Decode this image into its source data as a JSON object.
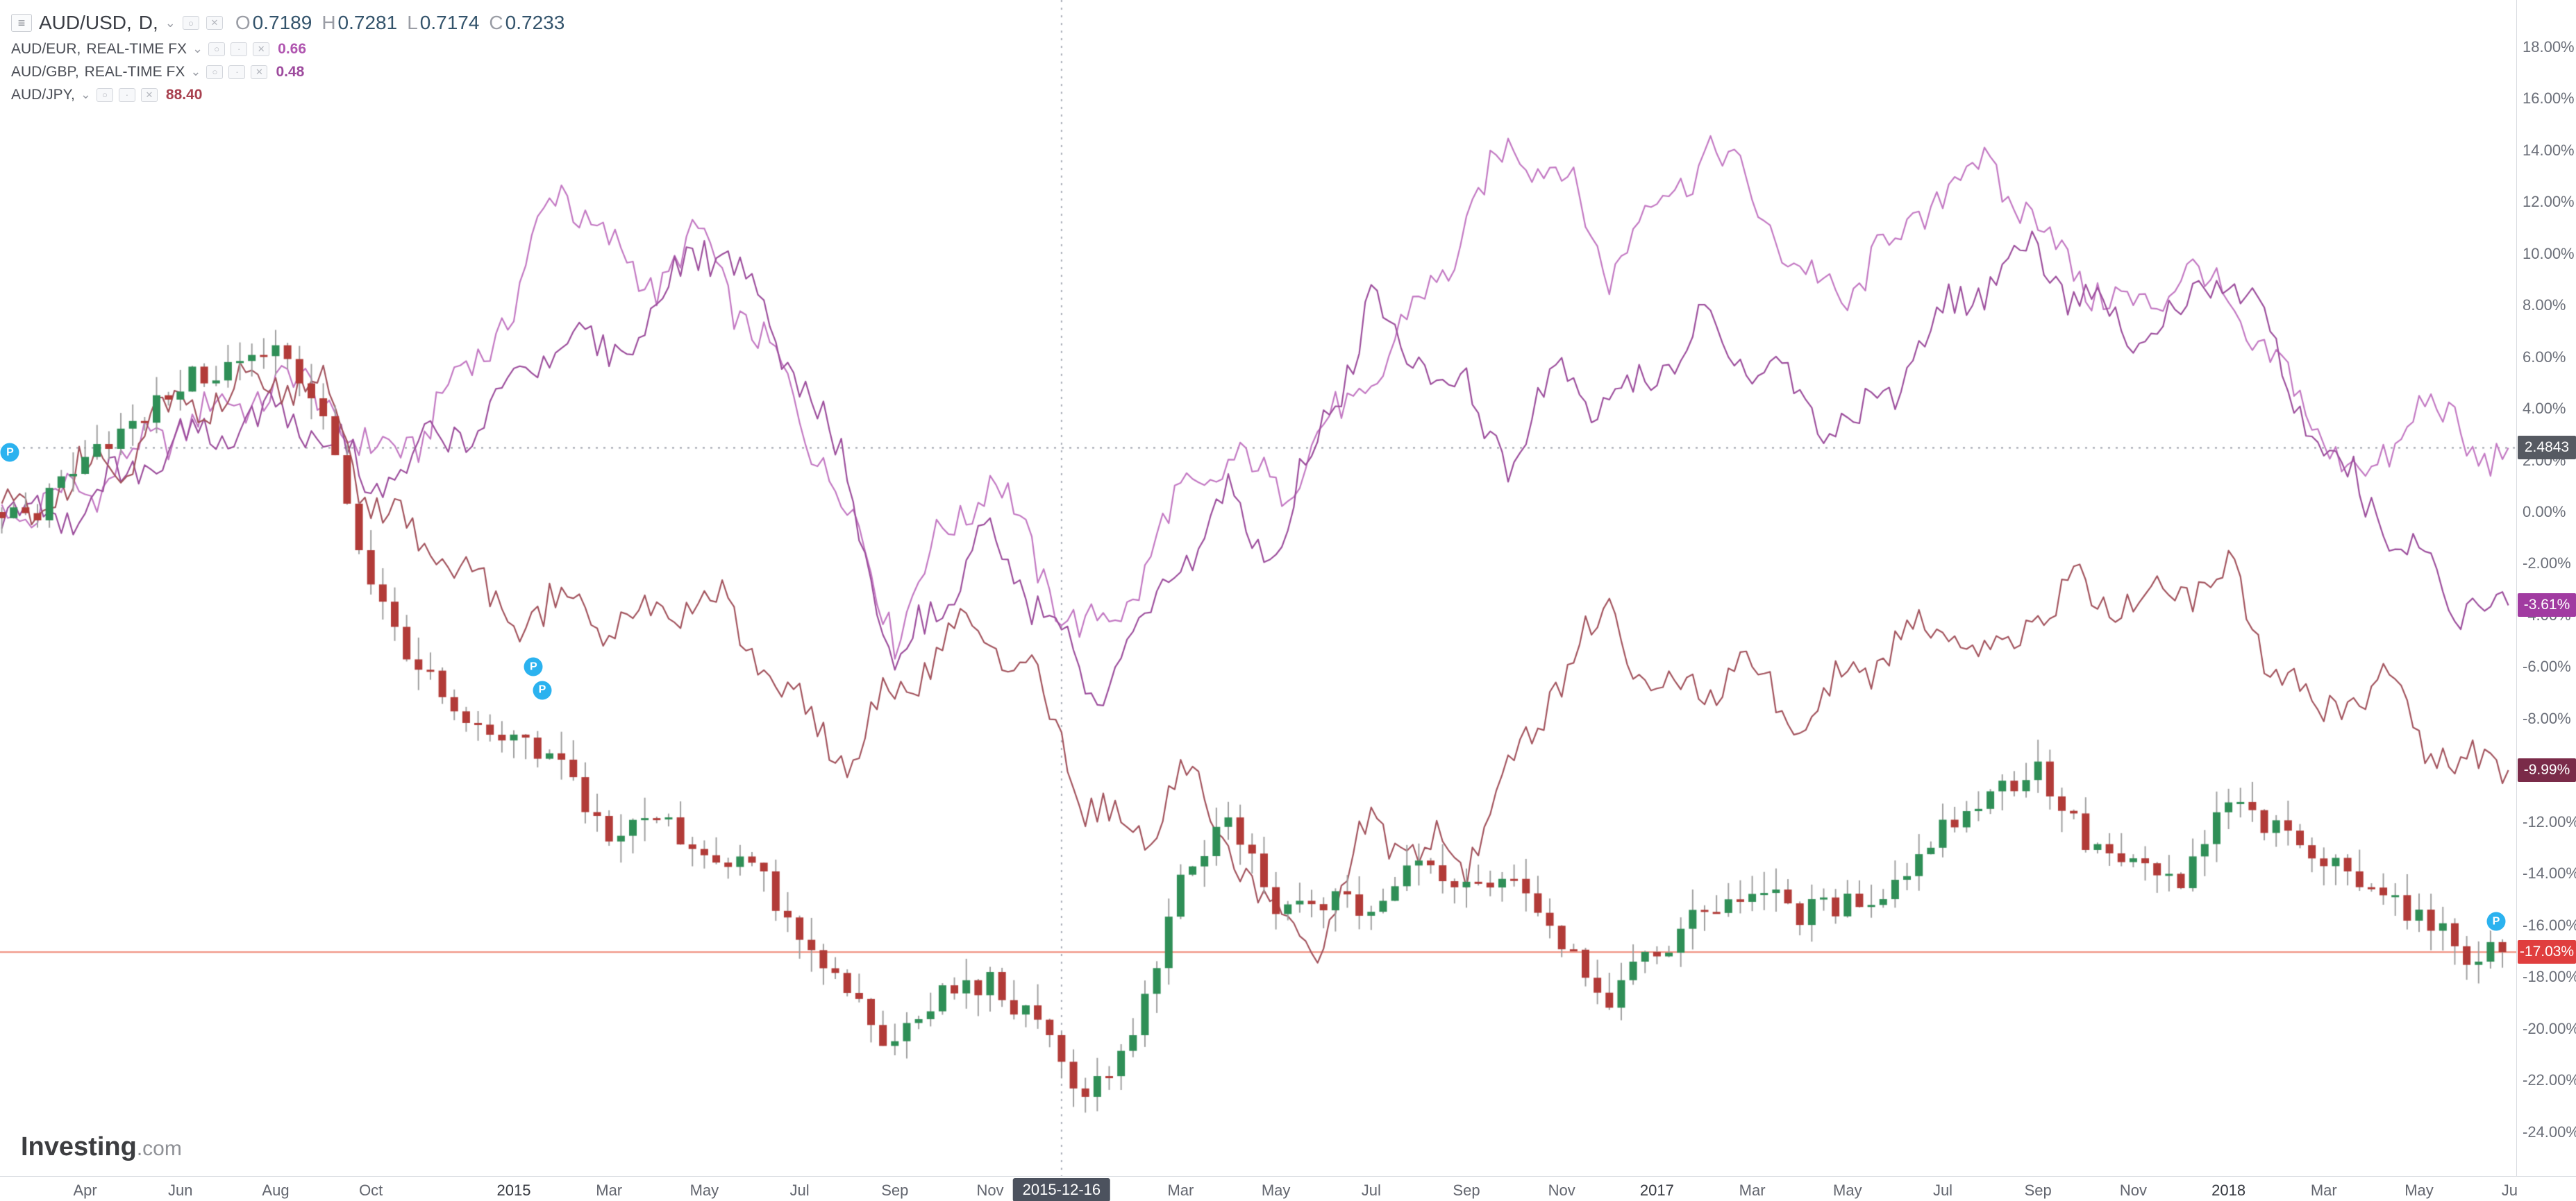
{
  "app": {
    "watermark_main": "Investing",
    "watermark_suffix": ".com"
  },
  "legend": {
    "main": {
      "symbol": "AUD/USD,",
      "interval": "D,",
      "ohlc_labels": {
        "o": "O",
        "h": "H",
        "l": "L",
        "c": "C"
      },
      "ohlc": {
        "o": "0.7189",
        "h": "0.7281",
        "l": "0.7174",
        "c": "0.7233"
      },
      "value_color": "#33536b"
    },
    "compares": [
      {
        "symbol": "AUD/EUR,",
        "type": "REAL-TIME FX",
        "value": "0.66",
        "color": "#b055b0"
      },
      {
        "symbol": "AUD/GBP,",
        "type": "REAL-TIME FX",
        "value": "0.48",
        "color": "#9d4a9d"
      },
      {
        "symbol": "AUD/JPY,",
        "type": "",
        "value": "88.40",
        "color": "#a8414f"
      }
    ]
  },
  "axes": {
    "y_ticks": [
      {
        "label": "18.00%",
        "value": 18
      },
      {
        "label": "16.00%",
        "value": 16
      },
      {
        "label": "14.00%",
        "value": 14
      },
      {
        "label": "12.00%",
        "value": 12
      },
      {
        "label": "10.00%",
        "value": 10
      },
      {
        "label": "8.00%",
        "value": 8
      },
      {
        "label": "6.00%",
        "value": 6
      },
      {
        "label": "4.00%",
        "value": 4
      },
      {
        "label": "2.00%",
        "value": 2
      },
      {
        "label": "0.00%",
        "value": 0
      },
      {
        "label": "-2.00%",
        "value": -2
      },
      {
        "label": "-4.00%",
        "value": -4
      },
      {
        "label": "-6.00%",
        "value": -6
      },
      {
        "label": "-8.00%",
        "value": -8
      },
      {
        "label": "-10.00%",
        "value": -10
      },
      {
        "label": "-12.00%",
        "value": -12
      },
      {
        "label": "-14.00%",
        "value": -14
      },
      {
        "label": "-16.00%",
        "value": -16
      },
      {
        "label": "-18.00%",
        "value": -18
      },
      {
        "label": "-20.00%",
        "value": -20
      },
      {
        "label": "-22.00%",
        "value": -22
      },
      {
        "label": "-24.00%",
        "value": -24
      }
    ],
    "x_labels": [
      {
        "label": "Apr",
        "m": 1
      },
      {
        "label": "Jun",
        "m": 3
      },
      {
        "label": "Aug",
        "m": 5
      },
      {
        "label": "Oct",
        "m": 7
      },
      {
        "label": "2015",
        "m": 10,
        "year": true
      },
      {
        "label": "Mar",
        "m": 12
      },
      {
        "label": "May",
        "m": 14
      },
      {
        "label": "Jul",
        "m": 16
      },
      {
        "label": "Sep",
        "m": 18
      },
      {
        "label": "Nov",
        "m": 20
      },
      {
        "label": "Mar",
        "m": 24
      },
      {
        "label": "May",
        "m": 26
      },
      {
        "label": "Jul",
        "m": 28
      },
      {
        "label": "Sep",
        "m": 30
      },
      {
        "label": "Nov",
        "m": 32
      },
      {
        "label": "2017",
        "m": 34,
        "year": true
      },
      {
        "label": "Mar",
        "m": 36
      },
      {
        "label": "May",
        "m": 38
      },
      {
        "label": "Jul",
        "m": 40
      },
      {
        "label": "Sep",
        "m": 42
      },
      {
        "label": "Nov",
        "m": 44
      },
      {
        "label": "2018",
        "m": 46,
        "year": true
      },
      {
        "label": "Mar",
        "m": 48
      },
      {
        "label": "May",
        "m": 50
      },
      {
        "label": "Ju",
        "m": 51.9
      }
    ],
    "crosshair_date": {
      "label": "2015-12-16",
      "m": 21.5
    },
    "price_tags": [
      {
        "label": "2.4843",
        "pct": 2.4843,
        "bg": "#565a62"
      },
      {
        "label": "-3.61%",
        "pct": -3.61,
        "bg": "#a13ba1"
      },
      {
        "label": "-9.99%",
        "pct": -9.99,
        "bg": "#7a2b49"
      },
      {
        "label": "-17.03%",
        "pct": -17.03,
        "bg": "#e03e3e"
      }
    ]
  },
  "reference_lines": {
    "dashed_horizontal_pct": 2.4843,
    "solid_horizontal": {
      "pct": -17.03,
      "color": "rgba(235,110,90,0.85)"
    },
    "dashed_vertical_month": 21.5
  },
  "markers": [
    {
      "label": "P",
      "fx": 0.004,
      "pct": 2.3
    },
    {
      "label": "P",
      "fx": 0.212,
      "pct": -6.0
    },
    {
      "label": "P",
      "fx": 0.2155,
      "pct": -6.9
    },
    {
      "label": "P",
      "fx": 0.992,
      "pct": -15.85
    }
  ],
  "chart_data": {
    "type": "mixed",
    "note": "Percent-change comparison chart; values are % change since start (approx. monthly closes read from chart).",
    "x_unit": "month",
    "ylim": [
      -24,
      18
    ],
    "grid": false,
    "legend_position": "top-left",
    "categories": [
      "2014-03",
      "2014-04",
      "2014-05",
      "2014-06",
      "2014-07",
      "2014-08",
      "2014-09",
      "2014-10",
      "2014-11",
      "2014-12",
      "2015-01",
      "2015-02",
      "2015-03",
      "2015-04",
      "2015-05",
      "2015-06",
      "2015-07",
      "2015-08",
      "2015-09",
      "2015-10",
      "2015-11",
      "2015-12",
      "2016-01",
      "2016-02",
      "2016-03",
      "2016-04",
      "2016-05",
      "2016-06",
      "2016-07",
      "2016-08",
      "2016-09",
      "2016-10",
      "2016-11",
      "2016-12",
      "2017-01",
      "2017-02",
      "2017-03",
      "2017-04",
      "2017-05",
      "2017-06",
      "2017-07",
      "2017-08",
      "2017-09",
      "2017-10",
      "2017-11",
      "2017-12",
      "2018-01",
      "2018-02",
      "2018-03",
      "2018-04",
      "2018-05",
      "2018-06"
    ],
    "series": [
      {
        "name": "AUD/USD",
        "type": "candlestick",
        "up_color": "#2f8f57",
        "down_color": "#b23b38",
        "wick_color": "#9f9f9f",
        "last_label": "-17.03%",
        "values": [
          0,
          2.5,
          3.2,
          5.0,
          5.6,
          6.2,
          4.0,
          -3.0,
          -6.0,
          -8.5,
          -9.0,
          -9.8,
          -12.6,
          -11.8,
          -13.2,
          -13.6,
          -16.7,
          -18.5,
          -20.8,
          -18.6,
          -18.2,
          -20.0,
          -22.5,
          -20.5,
          -14.5,
          -11.8,
          -15.6,
          -15.0,
          -15.4,
          -13.6,
          -14.4,
          -14.0,
          -16.5,
          -18.8,
          -17.0,
          -15.4,
          -14.6,
          -15.5,
          -15.2,
          -14.4,
          -12.2,
          -10.8,
          -10.0,
          -12.8,
          -13.8,
          -14.4,
          -11.2,
          -12.4,
          -13.6,
          -14.2,
          -15.8,
          -17.03
        ]
      },
      {
        "name": "AUD/EUR",
        "type": "line",
        "color": "#c379c3",
        "last_label": "2.4843",
        "values": [
          0,
          1.0,
          2.0,
          3.5,
          4.0,
          5.0,
          4.5,
          2.0,
          3.0,
          5.5,
          8.0,
          13.0,
          10.0,
          9.0,
          10.5,
          7.0,
          4.0,
          0.0,
          -4.5,
          -1.0,
          1.5,
          -2.0,
          -5.0,
          -3.0,
          0.5,
          2.0,
          1.0,
          3.0,
          5.0,
          8.0,
          11.0,
          14.5,
          13.0,
          9.5,
          12.0,
          14.0,
          12.5,
          9.0,
          8.5,
          10.5,
          12.5,
          13.5,
          11.0,
          9.0,
          7.5,
          9.5,
          8.0,
          5.5,
          3.0,
          1.0,
          4.5,
          2.4843
        ]
      },
      {
        "name": "AUD/GBP",
        "type": "line",
        "color": "#9d4f9d",
        "last_label": "-3.61%",
        "values": [
          0,
          0.5,
          1.5,
          2.5,
          3.0,
          4.0,
          3.0,
          1.0,
          2.0,
          3.5,
          5.0,
          7.0,
          6.0,
          8.0,
          10.5,
          8.5,
          5.0,
          1.5,
          -6.0,
          -3.0,
          -1.0,
          -3.5,
          -7.0,
          -5.5,
          -2.0,
          0.5,
          -1.5,
          3.5,
          8.0,
          6.0,
          4.5,
          2.0,
          5.5,
          4.0,
          5.5,
          7.0,
          6.0,
          4.5,
          3.0,
          5.0,
          7.5,
          9.0,
          10.0,
          8.0,
          6.5,
          7.5,
          9.5,
          6.0,
          2.5,
          0.5,
          -2.0,
          -3.61
        ]
      },
      {
        "name": "AUD/JPY",
        "type": "line",
        "color": "#a3545e",
        "last_label": "-9.99%",
        "values": [
          0,
          1.5,
          2.5,
          4.0,
          4.5,
          5.5,
          4.5,
          0.5,
          -1.0,
          -2.5,
          -4.5,
          -3.5,
          -4.5,
          -4.0,
          -3.0,
          -5.0,
          -7.5,
          -9.5,
          -7.0,
          -5.0,
          -4.5,
          -7.0,
          -11.0,
          -13.0,
          -10.0,
          -13.0,
          -15.5,
          -16.5,
          -12.0,
          -13.0,
          -13.5,
          -10.0,
          -6.0,
          -4.0,
          -7.0,
          -6.5,
          -6.0,
          -8.5,
          -6.5,
          -5.0,
          -4.5,
          -5.5,
          -4.0,
          -3.0,
          -3.5,
          -3.0,
          -2.5,
          -6.0,
          -8.0,
          -6.5,
          -8.5,
          -9.99
        ]
      }
    ]
  }
}
